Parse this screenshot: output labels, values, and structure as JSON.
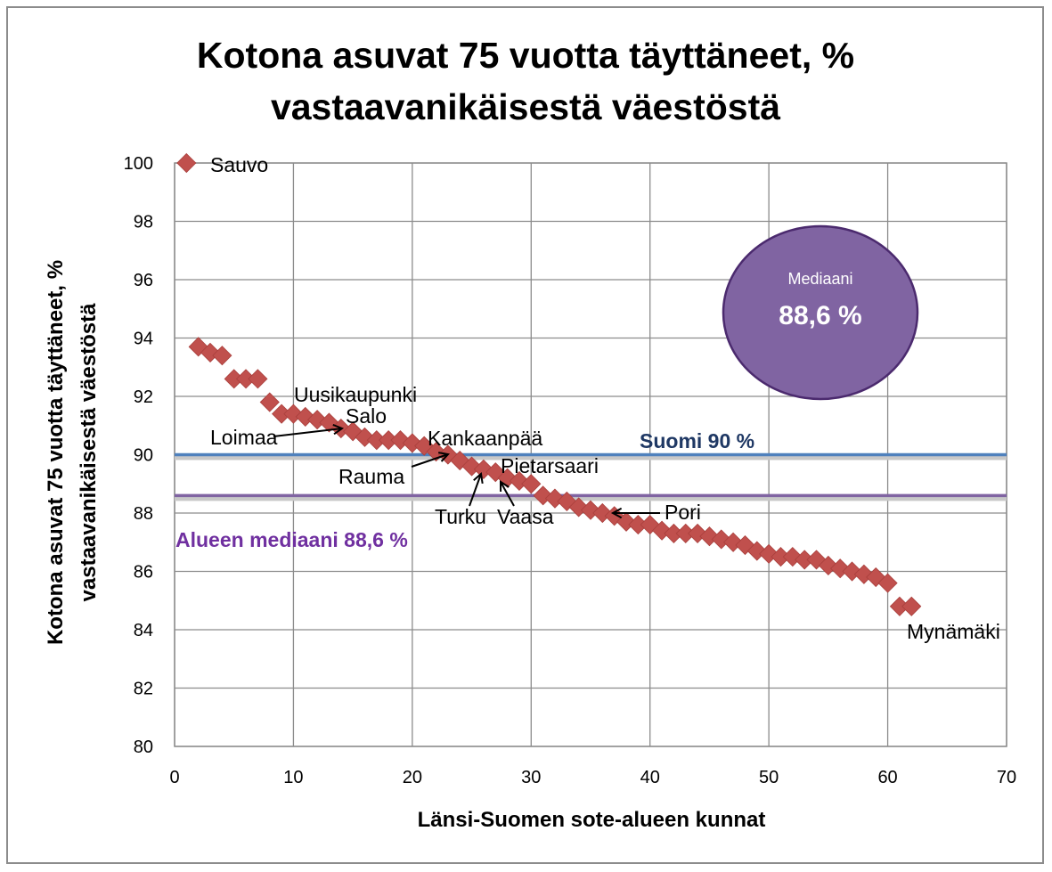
{
  "chart_data": {
    "type": "scatter",
    "title_lines": [
      "Kotona asuvat 75 vuotta täyttäneet, %",
      "vastaavanikäisestä väestöstä"
    ],
    "xlabel": "Länsi-Suomen sote-alueen kunnat",
    "ylabel_lines": [
      "Kotona asuvat 75 vuotta täyttäneet, %",
      "vastaavanikäisestä väestöstä"
    ],
    "xlim": [
      0,
      70
    ],
    "ylim": [
      80,
      100
    ],
    "x_ticks": [
      0,
      10,
      20,
      30,
      40,
      50,
      60,
      70
    ],
    "y_ticks": [
      80,
      82,
      84,
      86,
      88,
      90,
      92,
      94,
      96,
      98,
      100
    ],
    "grid": true,
    "marker_color": "#c0504d",
    "points": [
      [
        1,
        100
      ],
      [
        2,
        93.7
      ],
      [
        3,
        93.5
      ],
      [
        4,
        93.4
      ],
      [
        5,
        92.6
      ],
      [
        6,
        92.6
      ],
      [
        7,
        92.6
      ],
      [
        8,
        91.8
      ],
      [
        9,
        91.4
      ],
      [
        10,
        91.4
      ],
      [
        11,
        91.3
      ],
      [
        12,
        91.2
      ],
      [
        13,
        91.1
      ],
      [
        14,
        90.9
      ],
      [
        15,
        90.8
      ],
      [
        16,
        90.6
      ],
      [
        17,
        90.5
      ],
      [
        18,
        90.5
      ],
      [
        19,
        90.5
      ],
      [
        20,
        90.4
      ],
      [
        21,
        90.3
      ],
      [
        22,
        90.1
      ],
      [
        23,
        90.0
      ],
      [
        24,
        89.8
      ],
      [
        25,
        89.6
      ],
      [
        26,
        89.5
      ],
      [
        27,
        89.4
      ],
      [
        28,
        89.2
      ],
      [
        29,
        89.1
      ],
      [
        30,
        89.0
      ],
      [
        31,
        88.6
      ],
      [
        32,
        88.5
      ],
      [
        33,
        88.4
      ],
      [
        34,
        88.2
      ],
      [
        35,
        88.1
      ],
      [
        36,
        88.0
      ],
      [
        37,
        87.9
      ],
      [
        38,
        87.7
      ],
      [
        39,
        87.6
      ],
      [
        40,
        87.6
      ],
      [
        41,
        87.4
      ],
      [
        42,
        87.3
      ],
      [
        43,
        87.3
      ],
      [
        44,
        87.3
      ],
      [
        45,
        87.2
      ],
      [
        46,
        87.1
      ],
      [
        47,
        87.0
      ],
      [
        48,
        86.9
      ],
      [
        49,
        86.7
      ],
      [
        50,
        86.6
      ],
      [
        51,
        86.5
      ],
      [
        52,
        86.5
      ],
      [
        53,
        86.4
      ],
      [
        54,
        86.4
      ],
      [
        55,
        86.2
      ],
      [
        56,
        86.1
      ],
      [
        57,
        86.0
      ],
      [
        58,
        85.9
      ],
      [
        59,
        85.8
      ],
      [
        60,
        85.6
      ],
      [
        61,
        84.8
      ],
      [
        62,
        84.8
      ]
    ],
    "point_labels": [
      {
        "text": "Sauvo"
      },
      {
        "text": "Uusikaupunki"
      },
      {
        "text": "Salo"
      },
      {
        "text": "Loimaa"
      },
      {
        "text": "Kankaanpää"
      },
      {
        "text": "Rauma"
      },
      {
        "text": "Pietarsaari"
      },
      {
        "text": "Turku"
      },
      {
        "text": "Vaasa"
      },
      {
        "text": "Pori"
      },
      {
        "text": "Mynämäki"
      }
    ],
    "reference_lines": [
      {
        "name": "Suomi",
        "label": "Suomi 90 %",
        "value": 90,
        "color": "#4f81bd",
        "label_color": "#1f3864"
      },
      {
        "name": "Alueen mediaani",
        "label": "Alueen mediaani 88,6 %",
        "value": 88.6,
        "color": "#8064a2",
        "label_color": "#7030a0"
      }
    ],
    "median_callout": {
      "small_text": "Mediaani",
      "big_text": "88,6 %",
      "fill": "#8064a2",
      "stroke": "#4b2a6e"
    }
  }
}
